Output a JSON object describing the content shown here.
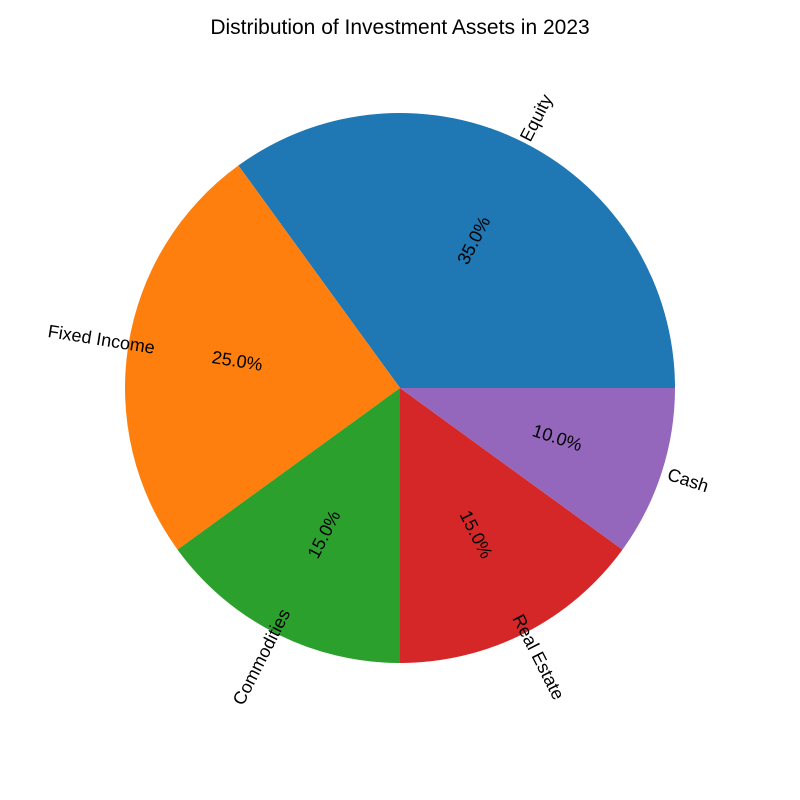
{
  "chart_data": {
    "type": "pie",
    "title": "Distribution of Investment Assets in 2023",
    "start_angle_deg": 0,
    "direction": "counterclockwise",
    "slices": [
      {
        "label": "Equity",
        "value": 35.0,
        "pct_label": "35.0%",
        "color": "#1f77b4"
      },
      {
        "label": "Fixed Income",
        "value": 25.0,
        "pct_label": "25.0%",
        "color": "#ff7f0e"
      },
      {
        "label": "Commodities",
        "value": 15.0,
        "pct_label": "15.0%",
        "color": "#2ca02c"
      },
      {
        "label": "Real Estate",
        "value": 15.0,
        "pct_label": "15.0%",
        "color": "#d62728"
      },
      {
        "label": "Cash",
        "value": 10.0,
        "pct_label": "10.0%",
        "color": "#9467bd"
      }
    ]
  }
}
